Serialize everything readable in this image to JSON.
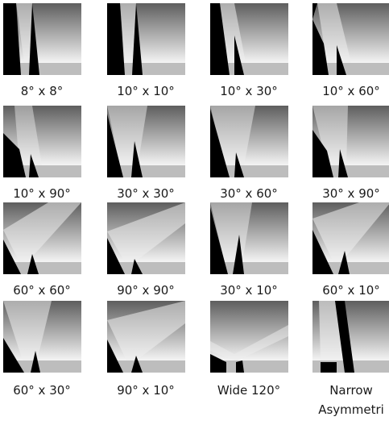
{
  "cells": [
    {
      "label": "8° x 8°",
      "half_angle_deg": 4
    },
    {
      "label": "10° x 10°",
      "half_angle_deg": 5
    },
    {
      "label": "10° x 30°",
      "half_angle_deg": 15
    },
    {
      "label": "10° x 60°",
      "half_angle_deg": 30
    },
    {
      "label": "10° x 90°",
      "half_angle_deg": 45
    },
    {
      "label": "30° x 30°",
      "half_angle_deg": 15
    },
    {
      "label": "30° x 60°",
      "half_angle_deg": 30
    },
    {
      "label": "30° x 90°",
      "half_angle_deg": 45
    },
    {
      "label": "60° x 60°",
      "half_angle_deg": 30
    },
    {
      "label": "90° x 90°",
      "half_angle_deg": 45
    },
    {
      "label": "30° x 10°",
      "half_angle_deg": 15
    },
    {
      "label": "60° x 10°",
      "half_angle_deg": 30
    },
    {
      "label": "60° x 30°",
      "half_angle_deg": 30
    },
    {
      "label": "90° x 10°",
      "half_angle_deg": 45
    },
    {
      "label": "Wide 120°",
      "half_angle_deg": 60
    },
    {
      "label": "Narrow",
      "label_line2": "Asymmetri",
      "half_angle_deg": 8
    }
  ],
  "colors": {
    "sky_top": "#5e5e5e",
    "sky_bottom": "#f6f6f6",
    "floor": "#bdbdbd",
    "beam": "#eeeeee",
    "dark": "#000000"
  }
}
